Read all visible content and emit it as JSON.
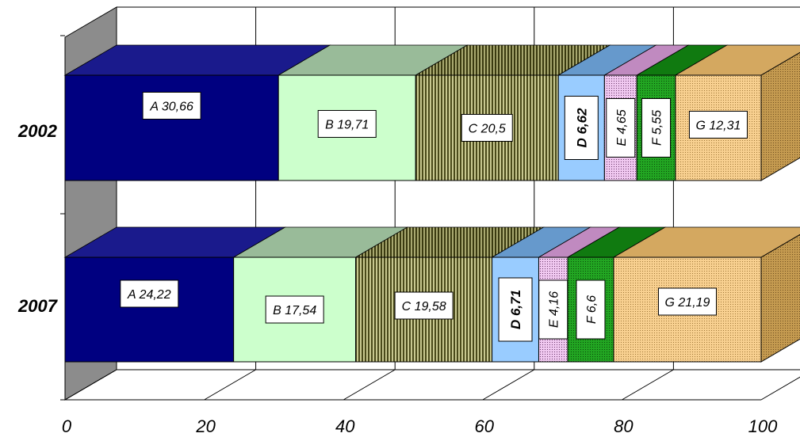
{
  "chart_data": {
    "type": "bar",
    "orientation": "horizontal",
    "stacked": true,
    "three_d": true,
    "categories": [
      "2002",
      "2007"
    ],
    "series": [
      {
        "name": "A",
        "values": [
          30.66,
          24.22
        ],
        "labels": [
          "A 30,66",
          "A 24,22"
        ],
        "color": "#000080",
        "pattern": "solid"
      },
      {
        "name": "B",
        "values": [
          19.71,
          17.54
        ],
        "labels": [
          "B 19,71",
          "B 17,54"
        ],
        "color": "#ccffcc",
        "pattern": "solid"
      },
      {
        "name": "C",
        "values": [
          20.5,
          19.58
        ],
        "labels": [
          "C 20,5",
          "C 19,58"
        ],
        "color": "#8a8a50",
        "pattern": "vertical-stripes"
      },
      {
        "name": "D",
        "values": [
          6.62,
          6.71
        ],
        "labels": [
          "D 6,62",
          "D 6,71"
        ],
        "color": "#99ccff",
        "pattern": "solid",
        "label_bold": true
      },
      {
        "name": "E",
        "values": [
          4.65,
          4.16
        ],
        "labels": [
          "E 4,65",
          "E 4,16"
        ],
        "color": "#dda0dd",
        "pattern": "dots"
      },
      {
        "name": "F",
        "values": [
          5.55,
          6.6
        ],
        "labels": [
          "F 5,55",
          "F 6,6"
        ],
        "color": "#169016",
        "pattern": "dots"
      },
      {
        "name": "G",
        "values": [
          12.31,
          21.19
        ],
        "labels": [
          "G 12,31",
          "G 21,19"
        ],
        "color": "#f5c67c",
        "pattern": "dots"
      }
    ],
    "x_ticks": [
      "0",
      "20",
      "40",
      "60",
      "80",
      "100"
    ],
    "xlim": [
      0,
      100
    ],
    "grid": true,
    "legend": "none"
  }
}
